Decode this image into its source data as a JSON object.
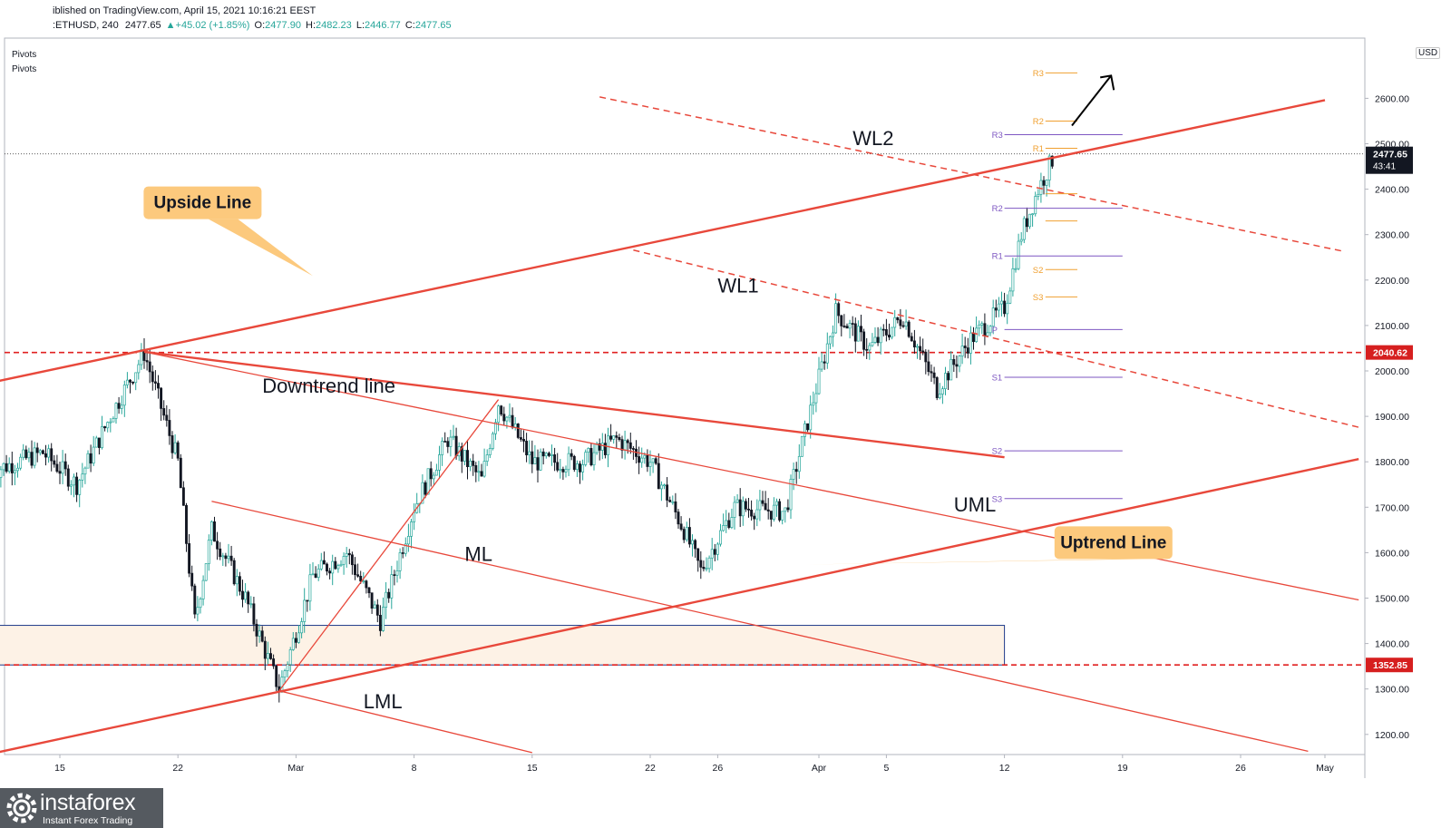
{
  "header": {
    "line1": "iblished on TradingView.com, April 15, 2021 10:16:21 EEST",
    "symbol": ":ETHUSD, 240",
    "last": "2477.65",
    "change": "▲+45.02 (+1.85%)",
    "o_label": "O:",
    "o_value": "2477.90",
    "h_label": "H:",
    "h_value": "2482.23",
    "l_label": "L:",
    "l_value": "2446.77",
    "c_label": "C:",
    "c_value": "2477.65"
  },
  "indicators": [
    "Pivots",
    "Pivots"
  ],
  "currency_badge": "USD",
  "logo": {
    "name": "instaforex",
    "tagline": "Instant Forex Trading",
    "icon": "gear-logo-icon"
  },
  "colors": {
    "up": "#26a69a",
    "down": "#131722",
    "trend": "#e8483b",
    "pivot_purple": "#7e57c2",
    "pivot_orange": "#f0a030",
    "label_bg": "#fcc97d",
    "zone": "#fdf2e6"
  },
  "chart_data": {
    "type": "candlestick",
    "symbol": "ETHUSD",
    "interval": "240",
    "ylim": [
      1160,
      2660
    ],
    "y_ticks": [
      1200,
      1300,
      1400,
      1500,
      1600,
      1700,
      1800,
      1900,
      2000,
      2100,
      2200,
      2300,
      2400,
      2500,
      2600
    ],
    "x_range": [
      "2021-02-11",
      "2021-05-03"
    ],
    "x_ticks": [
      {
        "date": "2021-02-15",
        "label": "15"
      },
      {
        "date": "2021-02-22",
        "label": "22"
      },
      {
        "date": "2021-03-01",
        "label": "Mar"
      },
      {
        "date": "2021-03-08",
        "label": "8"
      },
      {
        "date": "2021-03-15",
        "label": "15"
      },
      {
        "date": "2021-03-22",
        "label": "22"
      },
      {
        "date": "2021-03-26",
        "label": "26"
      },
      {
        "date": "2021-04-01",
        "label": "Apr"
      },
      {
        "date": "2021-04-05",
        "label": "5"
      },
      {
        "date": "2021-04-12",
        "label": "12"
      },
      {
        "date": "2021-04-19",
        "label": "19"
      },
      {
        "date": "2021-04-26",
        "label": "26"
      },
      {
        "date": "2021-05-01",
        "label": "May"
      }
    ],
    "price_path": [
      [
        "2021-02-11",
        1780
      ],
      [
        "2021-02-14",
        1820
      ],
      [
        "2021-02-16",
        1750
      ],
      [
        "2021-02-18",
        1900
      ],
      [
        "2021-02-20",
        2040
      ],
      [
        "2021-02-22",
        1800
      ],
      [
        "2021-02-23",
        1450
      ],
      [
        "2021-02-24",
        1650
      ],
      [
        "2021-02-26",
        1500
      ],
      [
        "2021-02-28",
        1300
      ],
      [
        "2021-03-02",
        1550
      ],
      [
        "2021-03-04",
        1600
      ],
      [
        "2021-03-06",
        1450
      ],
      [
        "2021-03-08",
        1700
      ],
      [
        "2021-03-10",
        1850
      ],
      [
        "2021-03-12",
        1760
      ],
      [
        "2021-03-13",
        1930
      ],
      [
        "2021-03-15",
        1800
      ],
      [
        "2021-03-18",
        1800
      ],
      [
        "2021-03-20",
        1850
      ],
      [
        "2021-03-22",
        1800
      ],
      [
        "2021-03-24",
        1650
      ],
      [
        "2021-03-25",
        1560
      ],
      [
        "2021-03-27",
        1700
      ],
      [
        "2021-03-30",
        1690
      ],
      [
        "2021-03-31",
        1840
      ],
      [
        "2021-04-02",
        2130
      ],
      [
        "2021-04-04",
        2050
      ],
      [
        "2021-04-06",
        2120
      ],
      [
        "2021-04-08",
        1960
      ],
      [
        "2021-04-10",
        2070
      ],
      [
        "2021-04-12",
        2140
      ],
      [
        "2021-04-13",
        2300
      ],
      [
        "2021-04-14",
        2400
      ],
      [
        "2021-04-15",
        2477.65
      ]
    ],
    "last_price": 2477.65,
    "price_tags": [
      {
        "value": 2477.65,
        "label": "2477.65",
        "sub": "43:41"
      },
      {
        "value": 2040.62,
        "label": "2040.62"
      },
      {
        "value": 1352.85,
        "label": "1352.85"
      }
    ],
    "horizontal_levels": [
      {
        "value": 2040.62,
        "style": "dashed"
      },
      {
        "value": 1352.85,
        "style": "dashed"
      }
    ],
    "zone": {
      "from": "2021-02-11",
      "to": "2021-04-12",
      "low": 1352.85,
      "high": 1440
    },
    "trend_lines": [
      {
        "name": "Upside Line",
        "p1": [
          "2021-02-11",
          1975
        ],
        "p2": [
          "2021-05-01",
          2596
        ],
        "style": "solid-thick"
      },
      {
        "name": "Uptrend Line",
        "p1": [
          "2021-02-11",
          1158
        ],
        "p2": [
          "2021-05-03",
          1806
        ],
        "style": "solid-thick"
      },
      {
        "name": "Downtrend line",
        "p1": [
          "2021-02-20",
          2042
        ],
        "p2": [
          "2021-04-12",
          1810
        ],
        "style": "solid-thick"
      },
      {
        "name": "WL2",
        "p1": [
          "2021-03-19",
          2603
        ],
        "p2": [
          "2021-05-02",
          2264
        ],
        "style": "dashed"
      },
      {
        "name": "WL1",
        "p1": [
          "2021-03-21",
          2266
        ],
        "p2": [
          "2021-05-03",
          1876
        ],
        "style": "dashed"
      },
      {
        "name": "pitchfork handle",
        "p1": [
          "2021-02-28",
          1296
        ],
        "p2": [
          "2021-03-13",
          1937
        ],
        "style": "solid-thin"
      },
      {
        "name": "UML",
        "p1": [
          "2021-02-20",
          2042
        ],
        "p2": [
          "2021-05-03",
          1496
        ],
        "style": "solid-thin"
      },
      {
        "name": "ML",
        "p1": [
          "2021-02-24",
          1713
        ],
        "p2": [
          "2021-04-30",
          1163
        ],
        "style": "solid-thin"
      },
      {
        "name": "LML",
        "p1": [
          "2021-02-28",
          1296
        ],
        "p2": [
          "2021-03-15",
          1160
        ],
        "style": "solid-thin"
      }
    ],
    "text_annotations": [
      {
        "text": "WL2",
        "at": [
          "2021-04-03",
          2497
        ]
      },
      {
        "text": "WL1",
        "at": [
          "2021-03-26",
          2173
        ]
      },
      {
        "text": "Downtrend line",
        "at": [
          "2021-02-27",
          1952
        ]
      },
      {
        "text": "UML",
        "at": [
          "2021-04-09",
          1691
        ]
      },
      {
        "text": "ML",
        "at": [
          "2021-03-11",
          1582
        ]
      },
      {
        "text": "LML",
        "at": [
          "2021-03-05",
          1257
        ]
      }
    ],
    "label_boxes": [
      {
        "text": "Upside Line",
        "at": [
          "2021-02-24",
          2366
        ],
        "pointer_to": [
          "2021-03-02",
          2209
        ]
      },
      {
        "text": "Uptrend Line",
        "at": [
          "2021-04-19",
          1618
        ],
        "pointer_to": [
          "2021-03-30",
          1573
        ]
      }
    ],
    "pivots_weekly": {
      "from": "2021-04-12",
      "to": "2021-04-19",
      "levels": [
        {
          "label": "R3",
          "value": 2520
        },
        {
          "label": "R2",
          "value": 2358
        },
        {
          "label": "R1",
          "value": 2253
        },
        {
          "label": "P",
          "value": 2091
        },
        {
          "label": "S1",
          "value": 1986
        },
        {
          "label": "S2",
          "value": 1824
        },
        {
          "label": "S3",
          "value": 1719
        }
      ]
    },
    "pivots_daily": {
      "from": "2021-04-14",
      "to": "2021-04-16",
      "levels": [
        {
          "label": "R3",
          "value": 2656
        },
        {
          "label": "R2",
          "value": 2550
        },
        {
          "label": "R1",
          "value": 2490
        },
        {
          "label": "",
          "value": 2390
        },
        {
          "label": "",
          "value": 2330
        },
        {
          "label": "S2",
          "value": 2223
        },
        {
          "label": "S3",
          "value": 2163
        }
      ]
    },
    "arrow": {
      "from": [
        "2021-04-16",
        2540
      ],
      "to": [
        "2021-04-18",
        2650
      ]
    }
  }
}
